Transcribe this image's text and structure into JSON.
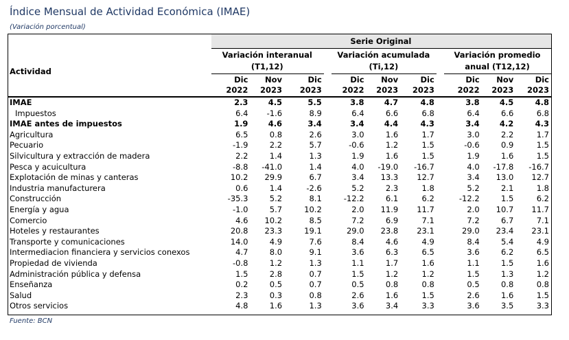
{
  "title": "Índice Mensual de Actividad Económica (IMAE)",
  "subtitle": "(Variación porcentual)",
  "source": "Fuente: BCN",
  "header": {
    "serie": "Serie Original",
    "actividad": "Actividad",
    "groups": [
      {
        "line1": "Variación interanual",
        "line2": "(T1,12)"
      },
      {
        "line1": "Variación acumulada",
        "line2": "(Ti,12)"
      },
      {
        "line1": "Variación promedio",
        "line2": "anual (T12,12)"
      }
    ],
    "columns": [
      {
        "line1": "Dic",
        "line2": "2022"
      },
      {
        "line1": "Nov",
        "line2": "2023"
      },
      {
        "line1": "Dic",
        "line2": "2023"
      }
    ]
  },
  "rows": [
    {
      "label": "IMAE",
      "bold": true,
      "indent": false,
      "values": [
        "2.3",
        "4.5",
        "5.5",
        "3.8",
        "4.7",
        "4.8",
        "3.8",
        "4.5",
        "4.8"
      ]
    },
    {
      "label": "Impuestos",
      "bold": false,
      "indent": true,
      "values": [
        "6.4",
        "-1.6",
        "8.9",
        "6.4",
        "6.6",
        "6.8",
        "6.4",
        "6.6",
        "6.8"
      ]
    },
    {
      "label": "IMAE antes de impuestos",
      "bold": true,
      "indent": false,
      "values": [
        "1.9",
        "4.6",
        "3.4",
        "3.4",
        "4.4",
        "4.3",
        "3.4",
        "4.2",
        "4.3"
      ]
    },
    {
      "label": "Agricultura",
      "bold": false,
      "indent": false,
      "values": [
        "6.5",
        "0.8",
        "2.6",
        "3.0",
        "1.6",
        "1.7",
        "3.0",
        "2.2",
        "1.7"
      ]
    },
    {
      "label": "Pecuario",
      "bold": false,
      "indent": false,
      "values": [
        "-1.9",
        "2.2",
        "5.7",
        "-0.6",
        "1.2",
        "1.5",
        "-0.6",
        "0.9",
        "1.5"
      ]
    },
    {
      "label": "Silvicultura y extracción de madera",
      "bold": false,
      "indent": false,
      "values": [
        "2.2",
        "1.4",
        "1.3",
        "1.9",
        "1.6",
        "1.5",
        "1.9",
        "1.6",
        "1.5"
      ]
    },
    {
      "label": "Pesca y acuicultura",
      "bold": false,
      "indent": false,
      "values": [
        "-8.8",
        "-41.0",
        "1.4",
        "4.0",
        "-19.0",
        "-16.7",
        "4.0",
        "-17.8",
        "-16.7"
      ]
    },
    {
      "label": "Explotación de minas y canteras",
      "bold": false,
      "indent": false,
      "values": [
        "10.2",
        "29.9",
        "6.7",
        "3.4",
        "13.3",
        "12.7",
        "3.4",
        "13.0",
        "12.7"
      ]
    },
    {
      "label": "Industria manufacturera",
      "bold": false,
      "indent": false,
      "values": [
        "0.6",
        "1.4",
        "-2.6",
        "5.2",
        "2.3",
        "1.8",
        "5.2",
        "2.1",
        "1.8"
      ]
    },
    {
      "label": "Construcción",
      "bold": false,
      "indent": false,
      "values": [
        "-35.3",
        "5.2",
        "8.1",
        "-12.2",
        "6.1",
        "6.2",
        "-12.2",
        "1.5",
        "6.2"
      ]
    },
    {
      "label": "Energía y agua",
      "bold": false,
      "indent": false,
      "values": [
        "-1.0",
        "5.7",
        "10.2",
        "2.0",
        "11.9",
        "11.7",
        "2.0",
        "10.7",
        "11.7"
      ]
    },
    {
      "label": "Comercio",
      "bold": false,
      "indent": false,
      "values": [
        "4.6",
        "10.2",
        "8.5",
        "7.2",
        "6.9",
        "7.1",
        "7.2",
        "6.7",
        "7.1"
      ]
    },
    {
      "label": "Hoteles y restaurantes",
      "bold": false,
      "indent": false,
      "values": [
        "20.8",
        "23.3",
        "19.1",
        "29.0",
        "23.8",
        "23.1",
        "29.0",
        "23.4",
        "23.1"
      ]
    },
    {
      "label": "Transporte y comunicaciones",
      "bold": false,
      "indent": false,
      "values": [
        "14.0",
        "4.9",
        "7.6",
        "8.4",
        "4.6",
        "4.9",
        "8.4",
        "5.4",
        "4.9"
      ]
    },
    {
      "label": "Intermediacion financiera y servicios conexos",
      "bold": false,
      "indent": false,
      "values": [
        "4.7",
        "8.0",
        "9.1",
        "3.6",
        "6.3",
        "6.5",
        "3.6",
        "6.2",
        "6.5"
      ]
    },
    {
      "label": "Propiedad de vivienda",
      "bold": false,
      "indent": false,
      "values": [
        "-0.8",
        "1.2",
        "1.3",
        "1.1",
        "1.7",
        "1.6",
        "1.1",
        "1.5",
        "1.6"
      ]
    },
    {
      "label": "Administración pública y defensa",
      "bold": false,
      "indent": false,
      "values": [
        "1.5",
        "2.8",
        "0.7",
        "1.5",
        "1.2",
        "1.2",
        "1.5",
        "1.3",
        "1.2"
      ]
    },
    {
      "label": "Enseñanza",
      "bold": false,
      "indent": false,
      "values": [
        "0.2",
        "0.5",
        "0.7",
        "0.5",
        "0.8",
        "0.8",
        "0.5",
        "0.8",
        "0.8"
      ]
    },
    {
      "label": "Salud",
      "bold": false,
      "indent": false,
      "values": [
        "2.3",
        "0.3",
        "0.8",
        "2.6",
        "1.6",
        "1.5",
        "2.6",
        "1.6",
        "1.5"
      ]
    },
    {
      "label": "Otros servicios",
      "bold": false,
      "indent": false,
      "values": [
        "4.8",
        "1.6",
        "1.3",
        "3.6",
        "3.4",
        "3.3",
        "3.6",
        "3.5",
        "3.3"
      ]
    }
  ]
}
